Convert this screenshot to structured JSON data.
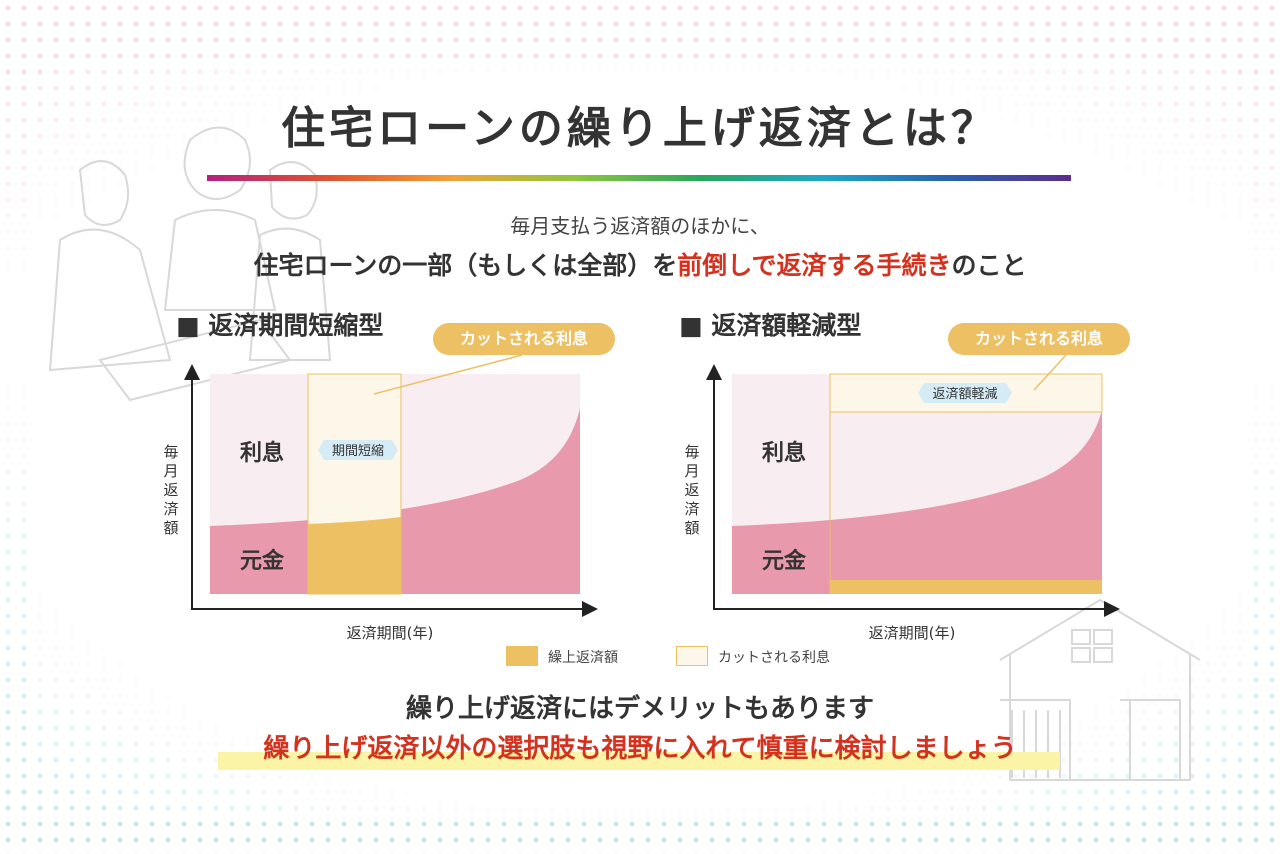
{
  "title": "住宅ローンの繰り上げ返済とは？",
  "subtitle_line1": "毎月支払う返済額のほかに、",
  "subtitle_line2": {
    "part1": "住宅ローンの一部（もしくは全部）を",
    "highlight": "前倒しで返済する手続き",
    "part2": "のこと"
  },
  "colors": {
    "interest": "#f8eef2",
    "principal": "#e899ab",
    "prepayment": "#ecc063",
    "cut_interest": "#fdf7ea",
    "accent_red": "#d2321e"
  },
  "charts": [
    {
      "heading": "■ 返済期間短縮型",
      "pill": "カットされる利息",
      "tag": "期間短縮",
      "label_interest": "利息",
      "label_principal": "元金",
      "y_axis": "毎月返済額",
      "x_axis": "返済期間(年)"
    },
    {
      "heading": "■ 返済額軽減型",
      "pill": "カットされる利息",
      "tag": "返済額軽減",
      "label_interest": "利息",
      "label_principal": "元金",
      "y_axis": "毎月返済額",
      "x_axis": "返済期間(年)"
    }
  ],
  "legend": [
    {
      "label": "繰上返済額",
      "color": "#ecc063"
    },
    {
      "label": "カットされる利息",
      "color": "#fdf7ea"
    }
  ],
  "bottom_line1": "繰り上げ返済にはデメリットもあります",
  "bottom_line2": "繰り上げ返済以外の選択肢も視野に入れて慎重に検討しましょう"
}
